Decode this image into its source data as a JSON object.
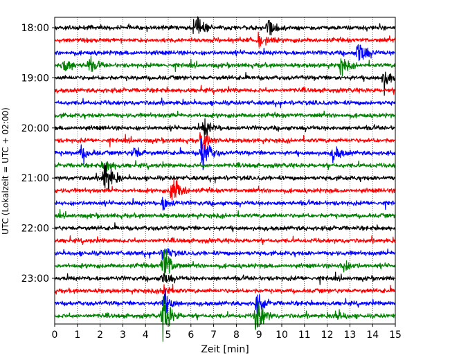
{
  "chart_data": {
    "type": "line",
    "title": "",
    "xlabel": "Zeit  [min]",
    "ylabel": "UTC (Lokalzeit = UTC + 02:00)",
    "xlim": [
      0,
      15
    ],
    "x_ticks": [
      "0",
      "1",
      "2",
      "3",
      "4",
      "5",
      "6",
      "7",
      "8",
      "9",
      "10",
      "11",
      "12",
      "13",
      "14",
      "15"
    ],
    "y_ticks": [
      "18:00",
      "19:00",
      "20:00",
      "21:00",
      "22:00",
      "23:00"
    ],
    "grid": "vertical dotted lines at each minute",
    "trace_interval_minutes": 15,
    "colors_cycle": [
      "#000000",
      "#ff0000",
      "#0000ff",
      "#008000"
    ],
    "series": [
      {
        "start": "18:00",
        "color": "#000000",
        "events": [
          {
            "t": 6.2,
            "amp": 1.4
          },
          {
            "t": 9.4,
            "amp": 1.2
          }
        ]
      },
      {
        "start": "18:15",
        "color": "#ff0000",
        "events": [
          {
            "t": 9.0,
            "amp": 0.8
          }
        ]
      },
      {
        "start": "18:30",
        "color": "#0000ff",
        "events": [
          {
            "t": 13.4,
            "amp": 1.8
          }
        ]
      },
      {
        "start": "18:45",
        "color": "#008000",
        "events": [
          {
            "t": 0.4,
            "amp": 1.0
          },
          {
            "t": 1.5,
            "amp": 0.9
          },
          {
            "t": 12.6,
            "amp": 1.0
          }
        ]
      },
      {
        "start": "19:00",
        "color": "#000000",
        "events": [
          {
            "t": 14.5,
            "amp": 1.4
          }
        ]
      },
      {
        "start": "19:15",
        "color": "#ff0000",
        "events": []
      },
      {
        "start": "19:30",
        "color": "#0000ff",
        "events": []
      },
      {
        "start": "19:45",
        "color": "#008000",
        "events": []
      },
      {
        "start": "20:00",
        "color": "#000000",
        "events": [
          {
            "t": 6.6,
            "amp": 1.2
          }
        ]
      },
      {
        "start": "20:15",
        "color": "#ff0000",
        "events": [
          {
            "t": 6.5,
            "amp": 1.3
          }
        ]
      },
      {
        "start": "20:30",
        "color": "#0000ff",
        "events": [
          {
            "t": 6.5,
            "amp": 2.4
          },
          {
            "t": 1.2,
            "amp": 0.9
          },
          {
            "t": 3.5,
            "amp": 0.8
          },
          {
            "t": 12.3,
            "amp": 1.0
          }
        ]
      },
      {
        "start": "20:45",
        "color": "#008000",
        "events": [
          {
            "t": 2.2,
            "amp": 0.8
          }
        ]
      },
      {
        "start": "21:00",
        "color": "#000000",
        "events": [
          {
            "t": 2.2,
            "amp": 2.6
          }
        ]
      },
      {
        "start": "21:15",
        "color": "#ff0000",
        "events": [
          {
            "t": 5.2,
            "amp": 2.2
          }
        ]
      },
      {
        "start": "21:30",
        "color": "#0000ff",
        "events": [
          {
            "t": 4.8,
            "amp": 0.8
          }
        ]
      },
      {
        "start": "21:45",
        "color": "#008000",
        "events": []
      },
      {
        "start": "22:00",
        "color": "#000000",
        "events": []
      },
      {
        "start": "22:15",
        "color": "#ff0000",
        "events": []
      },
      {
        "start": "22:30",
        "color": "#0000ff",
        "events": [
          {
            "t": 4.8,
            "amp": 0.8
          }
        ]
      },
      {
        "start": "22:45",
        "color": "#008000",
        "events": [
          {
            "t": 4.8,
            "amp": 2.6
          },
          {
            "t": 12.7,
            "amp": 0.8
          }
        ]
      },
      {
        "start": "23:00",
        "color": "#000000",
        "events": [
          {
            "t": 4.8,
            "amp": 0.8
          }
        ]
      },
      {
        "start": "23:15",
        "color": "#ff0000",
        "events": [
          {
            "t": 4.8,
            "amp": 0.8
          }
        ]
      },
      {
        "start": "23:30",
        "color": "#0000ff",
        "events": [
          {
            "t": 4.8,
            "amp": 1.5
          },
          {
            "t": 8.9,
            "amp": 1.0
          }
        ]
      },
      {
        "start": "23:45",
        "color": "#008000",
        "events": [
          {
            "t": 4.8,
            "amp": 2.6
          },
          {
            "t": 8.9,
            "amp": 2.4
          },
          {
            "t": 12.4,
            "amp": 0.7
          }
        ]
      }
    ]
  }
}
